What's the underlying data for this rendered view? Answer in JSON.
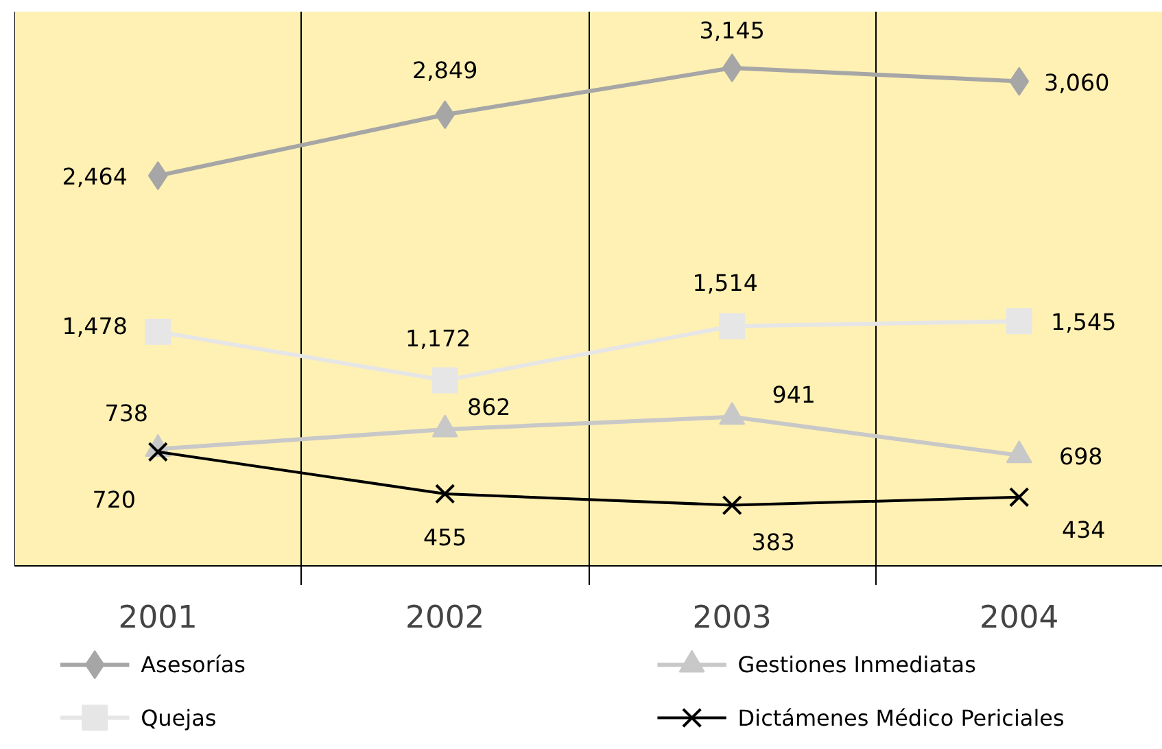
{
  "chart_data": {
    "type": "line",
    "categories": [
      "2001",
      "2002",
      "2003",
      "2004"
    ],
    "ylim": [
      0,
      3500
    ],
    "grid": "x",
    "legend": "bottom",
    "tick_labels": "x",
    "series": [
      {
        "name": "Asesorías",
        "color": "#a6a6a6",
        "marker": "diamond",
        "values": [
          2464,
          2849,
          3145,
          3060
        ],
        "value_labels": [
          "2,464",
          "2,849",
          "3,145",
          "3,060"
        ]
      },
      {
        "name": "Quejas",
        "color": "#e6e6e6",
        "marker": "square",
        "values": [
          1478,
          1172,
          1514,
          1545
        ],
        "value_labels": [
          "1,478",
          "1,172",
          "1,514",
          "1,545"
        ]
      },
      {
        "name": "Gestiones Inmediatas",
        "color": "#c8c8c8",
        "marker": "triangle",
        "values": [
          738,
          862,
          941,
          698
        ],
        "value_labels": [
          "738",
          "862",
          "941",
          "698"
        ]
      },
      {
        "name": "Dictámenes Médico Periciales",
        "color": "#000000",
        "marker": "cross",
        "values": [
          720,
          455,
          383,
          434
        ],
        "value_labels": [
          "720",
          "455",
          "383",
          "434"
        ]
      }
    ]
  }
}
